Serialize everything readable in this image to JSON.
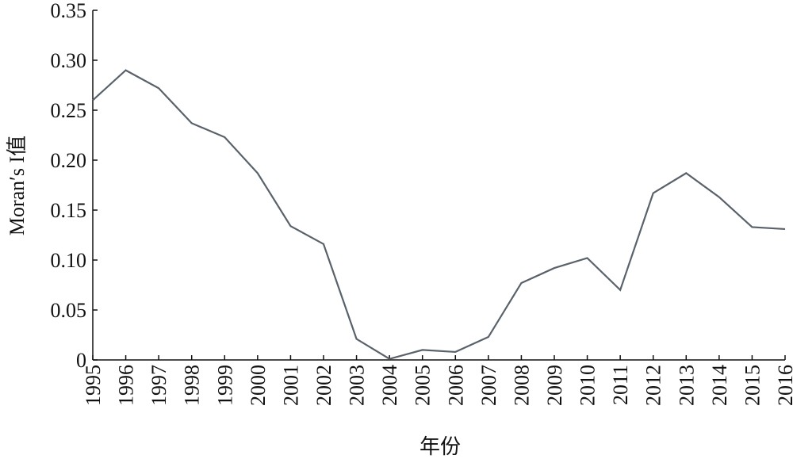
{
  "chart_data": {
    "type": "line",
    "xlabel": "年份",
    "ylabel": "Moran′s I值",
    "x": [
      1995,
      1996,
      1997,
      1998,
      1999,
      2000,
      2001,
      2002,
      2003,
      2004,
      2005,
      2006,
      2007,
      2008,
      2009,
      2010,
      2011,
      2012,
      2013,
      2014,
      2015,
      2016
    ],
    "series": [
      {
        "color": "#59616a",
        "values": [
          0.26,
          0.29,
          0.272,
          0.237,
          0.223,
          0.187,
          0.134,
          0.116,
          0.021,
          0.001,
          0.01,
          0.008,
          0.023,
          0.077,
          0.092,
          0.102,
          0.07,
          0.167,
          0.187,
          0.163,
          0.133,
          0.131
        ]
      }
    ],
    "xlim": [
      1995,
      2016
    ],
    "xticks": [
      1995,
      1996,
      1997,
      1998,
      1999,
      2000,
      2001,
      2002,
      2003,
      2004,
      2005,
      2006,
      2007,
      2008,
      2009,
      2010,
      2011,
      2012,
      2013,
      2014,
      2015,
      2016
    ],
    "ylim": [
      0,
      0.35
    ],
    "yticks": [
      0,
      0.05,
      {
        "value": 0.1,
        "label": "0.10"
      },
      0.15,
      {
        "value": 0.2,
        "label": "0.20"
      },
      0.25,
      {
        "value": 0.3,
        "label": "0.30"
      },
      0.35
    ],
    "grid": false
  }
}
